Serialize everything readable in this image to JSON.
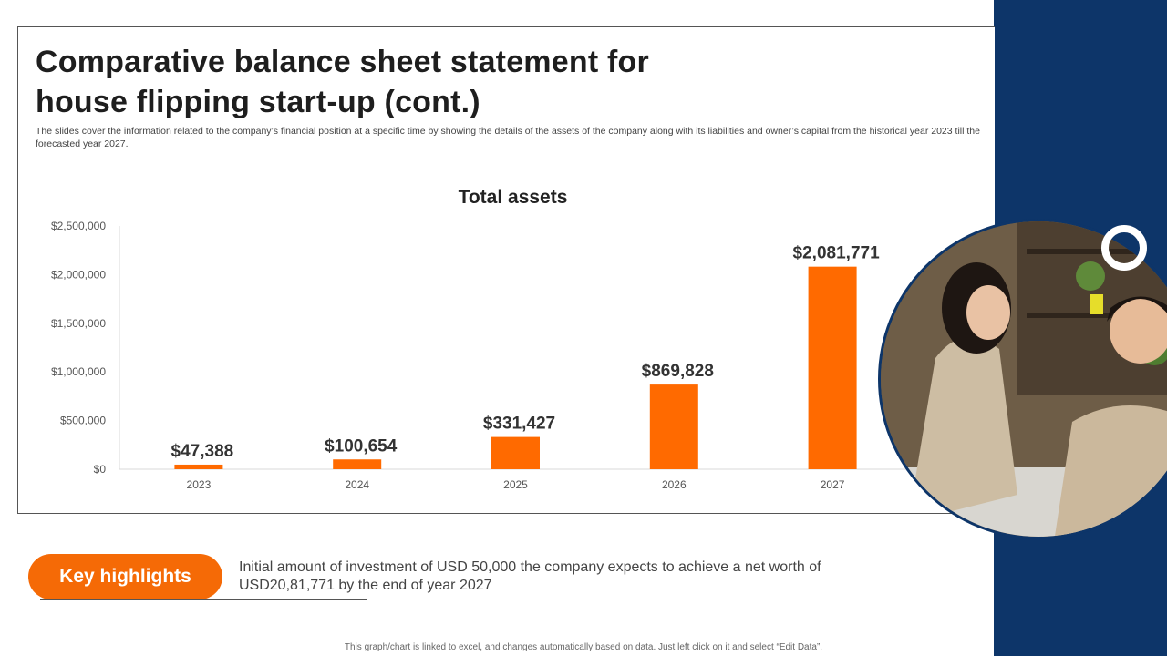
{
  "slide": {
    "title": "Comparative balance sheet statement for house flipping start-up (cont.)",
    "subtitle": "The slides cover the information related to the company’s financial position at a specific time by showing the details of the assets of the company along with its liabilities and owner’s capital from the historical year 2023 till the forecasted year 2027.",
    "footer": "This graph/chart is linked to excel, and changes automatically based on data. Just left click on it and select “Edit Data”."
  },
  "highlights": {
    "label": "Key highlights",
    "text": "Initial amount of investment of USD 50,000 the company expects to achieve a net worth of USD20,81,771 by the end of year 2027"
  },
  "colors": {
    "bar": "#ff6a00",
    "navy": "#0d3569",
    "accent": "#f56a06"
  },
  "chart_data": {
    "type": "bar",
    "title": "Total assets",
    "categories": [
      "2023",
      "2024",
      "2025",
      "2026",
      "2027"
    ],
    "values": [
      47388,
      100654,
      331427,
      869828,
      2081771
    ],
    "value_labels": [
      "$47,388",
      "$100,654",
      "$331,427",
      "$869,828",
      "$2,081,771"
    ],
    "ylim": [
      0,
      2500000
    ],
    "yticks": [
      0,
      500000,
      1000000,
      1500000,
      2000000,
      2500000
    ],
    "ytick_labels": [
      "$0",
      "$500,000",
      "$1,000,000",
      "$1,500,000",
      "$2,000,000",
      "$2,500,000"
    ],
    "xlabel": "",
    "ylabel": "",
    "grid": false,
    "legend": "none"
  }
}
